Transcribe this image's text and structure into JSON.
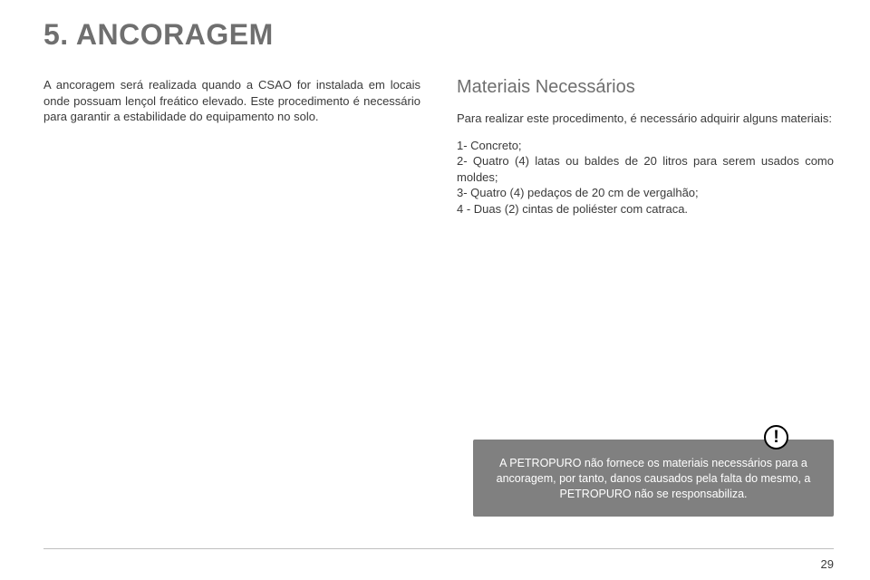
{
  "section_title": "5.  ANCORAGEM",
  "left_paragraph": "A ancoragem será realizada quando a CSAO for instalada em locais onde possuam lençol freático elevado. Este procedimento é necessário para garantir a estabilidade do equipamento no solo.",
  "right": {
    "heading": "Materiais Necessários",
    "intro": "Para realizar este procedimento, é necessário adquirir alguns materiais:",
    "items": [
      "1- Concreto;",
      "2- Quatro (4) latas ou baldes de 20 litros para serem usados como moldes;",
      "3-  Quatro (4) pedaços de 20 cm de vergalhão;",
      "4 - Duas (2) cintas de poliéster com catraca."
    ]
  },
  "alert": {
    "text": "A PETROPURO não fornece os materiais necessários para a ancoragem, por tanto, danos causados pela falta do mesmo, a PETROPURO não se responsabiliza.",
    "background": "#808080",
    "text_color": "#ffffff"
  },
  "page_number": "29",
  "colors": {
    "title": "#6f6f6f",
    "body": "#3a3a3a",
    "rule": "#bfbfbf"
  }
}
